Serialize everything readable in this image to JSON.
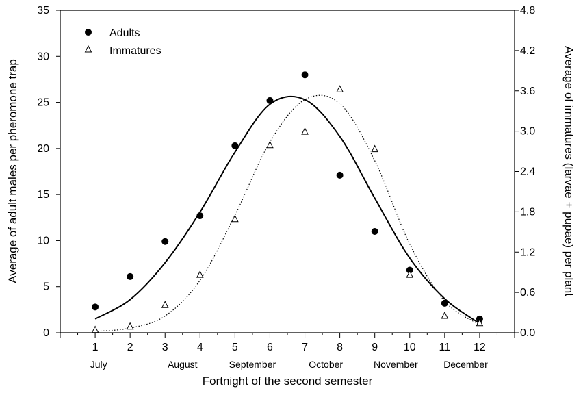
{
  "chart_data": {
    "type": "scatter",
    "x": [
      1,
      2,
      3,
      4,
      5,
      6,
      7,
      8,
      9,
      10,
      11,
      12
    ],
    "xlabel": "Fortnight of the second semester",
    "x_tick_labels": [
      "1",
      "2",
      "3",
      "4",
      "5",
      "6",
      "7",
      "8",
      "9",
      "10",
      "11",
      "12"
    ],
    "month_labels": [
      "July",
      "August",
      "September",
      "October",
      "November",
      "December"
    ],
    "month_positions": [
      1.1,
      3.5,
      5.5,
      7.6,
      9.6,
      11.6
    ],
    "xlim": [
      0,
      13
    ],
    "ylabel_left": "Average of adult males per pheromone trap",
    "ylim_left": [
      0,
      35
    ],
    "yticks_left": [
      0,
      5,
      10,
      15,
      20,
      25,
      30,
      35
    ],
    "ylabel_right": "Average of immatures (larvae + pupae) per plant",
    "ylim_right": [
      0,
      4.8
    ],
    "yticks_right": [
      "0.0",
      "0.6",
      "1.2",
      "1.8",
      "2.4",
      "3.0",
      "3.6",
      "4.2",
      "4.8"
    ],
    "legend_position": "top-left",
    "series": [
      {
        "name": "Adults",
        "axis": "left",
        "marker": "filled-circle",
        "line_style": "solid",
        "values": [
          2.8,
          6.1,
          9.9,
          12.7,
          20.3,
          25.2,
          28.0,
          17.1,
          11.0,
          6.8,
          3.2,
          1.5
        ],
        "fit_curve": [
          1.5,
          3.6,
          7.6,
          13.1,
          19.6,
          24.8,
          25.3,
          21.3,
          14.6,
          8.1,
          3.7,
          1.0
        ]
      },
      {
        "name": "Immatures",
        "axis": "right",
        "marker": "open-triangle",
        "line_style": "dotted",
        "values": [
          0.05,
          0.1,
          0.42,
          0.87,
          1.7,
          2.8,
          3.0,
          3.63,
          2.74,
          0.87,
          0.26,
          0.15
        ],
        "fit_curve": [
          0.02,
          0.07,
          0.25,
          0.78,
          1.75,
          2.84,
          3.47,
          3.41,
          2.56,
          1.32,
          0.47,
          0.12
        ]
      }
    ]
  }
}
